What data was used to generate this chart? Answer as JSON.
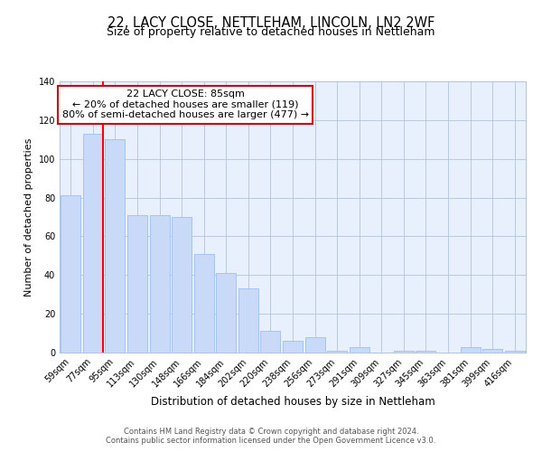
{
  "title1": "22, LACY CLOSE, NETTLEHAM, LINCOLN, LN2 2WF",
  "title2": "Size of property relative to detached houses in Nettleham",
  "xlabel": "Distribution of detached houses by size in Nettleham",
  "ylabel": "Number of detached properties",
  "bar_labels": [
    "59sqm",
    "77sqm",
    "95sqm",
    "113sqm",
    "130sqm",
    "148sqm",
    "166sqm",
    "184sqm",
    "202sqm",
    "220sqm",
    "238sqm",
    "256sqm",
    "273sqm",
    "291sqm",
    "309sqm",
    "327sqm",
    "345sqm",
    "363sqm",
    "381sqm",
    "399sqm",
    "416sqm"
  ],
  "bar_values": [
    81,
    113,
    110,
    71,
    71,
    70,
    51,
    41,
    33,
    11,
    6,
    8,
    1,
    3,
    0,
    1,
    1,
    0,
    3,
    2,
    1
  ],
  "bar_color": "#c9daf8",
  "bar_edge_color": "#a4c2f4",
  "background_color": "#ffffff",
  "grid_color": "#b0c4de",
  "ylim": [
    0,
    140
  ],
  "yticks": [
    0,
    20,
    40,
    60,
    80,
    100,
    120,
    140
  ],
  "annotation_text": "22 LACY CLOSE: 85sqm\n← 20% of detached houses are smaller (119)\n80% of semi-detached houses are larger (477) →",
  "annotation_box_color": "#ffffff",
  "annotation_box_edge_color": "#cc0000",
  "footer1": "Contains HM Land Registry data © Crown copyright and database right 2024.",
  "footer2": "Contains public sector information licensed under the Open Government Licence v3.0.",
  "title1_fontsize": 10.5,
  "title2_fontsize": 9,
  "xlabel_fontsize": 8.5,
  "ylabel_fontsize": 8,
  "tick_fontsize": 7,
  "annotation_fontsize": 8,
  "footer_fontsize": 6
}
